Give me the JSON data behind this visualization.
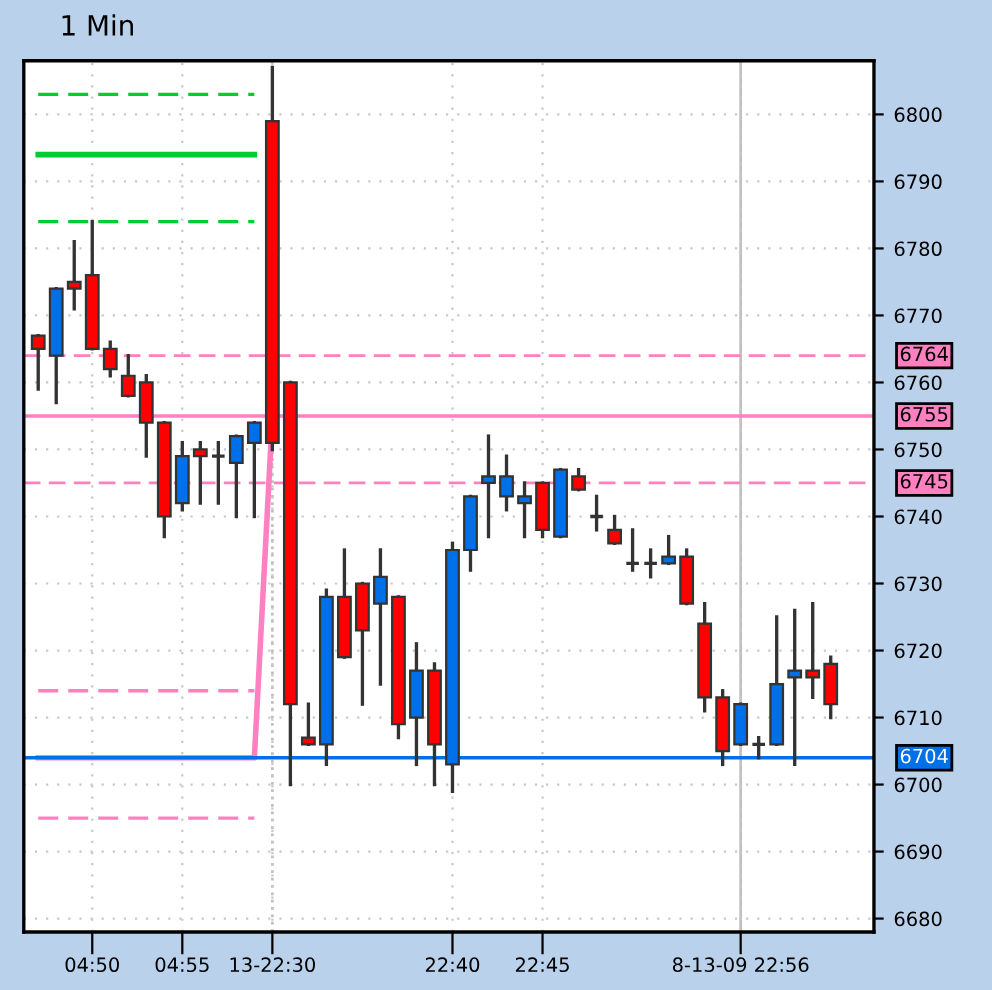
{
  "chart_data": {
    "type": "candlestick",
    "title": "1 Min",
    "categories": [
      null,
      null,
      null,
      "04:50",
      null,
      null,
      null,
      null,
      "04:55",
      null,
      null,
      null,
      null,
      "13-22:30",
      null,
      null,
      null,
      null,
      null,
      null,
      null,
      null,
      null,
      "22:40",
      null,
      null,
      null,
      null,
      "22:45",
      null,
      null,
      null,
      null,
      null,
      null,
      null,
      null,
      null,
      null,
      "8-13-09 22:56",
      null,
      null,
      null,
      null,
      null
    ],
    "ohlc": [
      [
        6767,
        6767,
        6759,
        6765
      ],
      [
        6764,
        6774,
        6757,
        6774
      ],
      [
        6775,
        6781,
        6771,
        6774
      ],
      [
        6776,
        6784,
        6765,
        6765
      ],
      [
        6765,
        6766,
        6761,
        6762
      ],
      [
        6761,
        6764,
        6758,
        6758
      ],
      [
        6760,
        6761,
        6749,
        6754
      ],
      [
        6754,
        6754,
        6737,
        6740
      ],
      [
        6742,
        6751,
        6741,
        6749
      ],
      [
        6750,
        6751,
        6742,
        6749
      ],
      [
        6749,
        6751,
        6742,
        6749
      ],
      [
        6748,
        6752,
        6740,
        6752
      ],
      [
        6751,
        6754,
        6740,
        6754
      ],
      [
        6799,
        6807,
        6750,
        6751
      ],
      [
        6760,
        6760,
        6700,
        6712
      ],
      [
        6707,
        6712,
        6706,
        6706
      ],
      [
        6706,
        6729,
        6703,
        6728
      ],
      [
        6728,
        6735,
        6719,
        6719
      ],
      [
        6730,
        6730,
        6712,
        6723
      ],
      [
        6727,
        6735,
        6715,
        6731
      ],
      [
        6728,
        6728,
        6707,
        6709
      ],
      [
        6710,
        6721,
        6703,
        6717
      ],
      [
        6717,
        6718,
        6700,
        6706
      ],
      [
        6703,
        6736,
        6699,
        6735
      ],
      [
        6735,
        6743,
        6732,
        6743
      ],
      [
        6745,
        6752,
        6737,
        6746
      ],
      [
        6743,
        6749,
        6741,
        6746
      ],
      [
        6742,
        6745,
        6737,
        6743
      ],
      [
        6745,
        6745,
        6737,
        6738
      ],
      [
        6737,
        6747,
        6737,
        6747
      ],
      [
        6746,
        6747,
        6744,
        6744
      ],
      [
        6740,
        6743,
        6738,
        6740
      ],
      [
        6738,
        6740,
        6736,
        6736
      ],
      [
        6733,
        6738,
        6732,
        6733
      ],
      [
        6733,
        6735,
        6731,
        6733
      ],
      [
        6733,
        6737,
        6733,
        6734
      ],
      [
        6734,
        6735,
        6727,
        6727
      ],
      [
        6724,
        6727,
        6711,
        6713
      ],
      [
        6713,
        6714,
        6703,
        6705
      ],
      [
        6706,
        6712,
        6706,
        6712
      ],
      [
        6706,
        6707,
        6704,
        6706
      ],
      [
        6706,
        6725,
        6706,
        6715
      ],
      [
        6716,
        6726,
        6703,
        6717
      ],
      [
        6717,
        6727,
        6713,
        6716
      ],
      [
        6718,
        6719,
        6710,
        6712
      ]
    ],
    "colors": [
      "#ff0000",
      "#0070e8",
      "#ff0000",
      "#ff0000",
      "#ff0000",
      "#ff0000",
      "#ff0000",
      "#ff0000",
      "#0070e8",
      "#ff0000",
      "#333333",
      "#0070e8",
      "#0070e8",
      "#ff0000",
      "#ff0000",
      "#ff0000",
      "#0070e8",
      "#ff0000",
      "#ff0000",
      "#0070e8",
      "#ff0000",
      "#0070e8",
      "#ff0000",
      "#0070e8",
      "#0070e8",
      "#0070e8",
      "#0070e8",
      "#0070e8",
      "#ff0000",
      "#0070e8",
      "#ff0000",
      "#333333",
      "#ff0000",
      "#333333",
      "#333333",
      "#0070e8",
      "#ff0000",
      "#ff0000",
      "#ff0000",
      "#0070e8",
      "#333333",
      "#0070e8",
      "#0070e8",
      "#ff0000",
      "#ff0000"
    ],
    "series": [
      {
        "type": "line",
        "color": "#00cc33",
        "line_style": "solid",
        "values": [
          6794,
          6794,
          6794,
          6794,
          6794,
          6794,
          6794,
          6794,
          6794,
          6794,
          6794,
          6794,
          6794,
          null,
          null,
          null,
          null,
          null,
          null,
          null,
          null,
          null,
          null,
          null,
          null,
          null,
          null,
          null,
          null,
          null,
          null,
          null,
          null,
          null,
          null,
          null,
          null,
          null,
          null,
          null,
          null,
          null,
          null,
          null,
          null
        ]
      },
      {
        "type": "line",
        "color": "#00cc33",
        "line_style": "dashed",
        "values": [
          6803,
          6803,
          6803,
          6803,
          6803,
          6803,
          6803,
          6803,
          6803,
          6803,
          6803,
          6803,
          6803,
          null,
          null,
          null,
          null,
          null,
          null,
          null,
          null,
          null,
          null,
          null,
          null,
          null,
          null,
          null,
          null,
          null,
          null,
          null,
          null,
          null,
          null,
          null,
          null,
          null,
          null,
          null,
          null,
          null,
          null,
          null,
          null
        ]
      },
      {
        "type": "line",
        "color": "#00cc33",
        "line_style": "dashed",
        "values": [
          6784,
          6784,
          6784,
          6784,
          6784,
          6784,
          6784,
          6784,
          6784,
          6784,
          6784,
          6784,
          6784,
          null,
          null,
          null,
          null,
          null,
          null,
          null,
          null,
          null,
          null,
          null,
          null,
          null,
          null,
          null,
          null,
          null,
          null,
          null,
          null,
          null,
          null,
          null,
          null,
          null,
          null,
          null,
          null,
          null,
          null,
          null,
          null
        ]
      },
      {
        "type": "line",
        "color": "#ff80c0",
        "line_style": "solid",
        "values": [
          6704,
          6704,
          6704,
          6704,
          6704,
          6704,
          6704,
          6704,
          6704,
          6704,
          6704,
          6704,
          6704,
          6755,
          null,
          null,
          null,
          null,
          null,
          null,
          null,
          null,
          null,
          null,
          null,
          null,
          null,
          null,
          null,
          null,
          null,
          null,
          null,
          null,
          null,
          null,
          null,
          null,
          null,
          null,
          null,
          null,
          null,
          null,
          null
        ]
      },
      {
        "type": "line",
        "color": "#ff80c0",
        "line_style": "dashed",
        "values": [
          6714,
          6714,
          6714,
          6714,
          6714,
          6714,
          6714,
          6714,
          6714,
          6714,
          6714,
          6714,
          6714,
          null,
          null,
          null,
          null,
          null,
          null,
          null,
          null,
          null,
          null,
          null,
          null,
          null,
          null,
          null,
          null,
          null,
          null,
          null,
          null,
          null,
          null,
          null,
          null,
          null,
          null,
          null,
          null,
          null,
          null,
          null,
          null
        ]
      },
      {
        "type": "line",
        "color": "#ff80c0",
        "line_style": "dashed",
        "values": [
          6695,
          6695,
          6695,
          6695,
          6695,
          6695,
          6695,
          6695,
          6695,
          6695,
          6695,
          6695,
          6695,
          null,
          null,
          null,
          null,
          null,
          null,
          null,
          null,
          null,
          null,
          null,
          null,
          null,
          null,
          null,
          null,
          null,
          null,
          null,
          null,
          null,
          null,
          null,
          null,
          null,
          null,
          null,
          null,
          null,
          null,
          null,
          null
        ]
      }
    ],
    "ref_lines": [
      {
        "axis": "y",
        "value": 6764,
        "label": "6764",
        "color": "#ff80c0",
        "line_style": "dashed"
      },
      {
        "axis": "y",
        "value": 6755,
        "label": "6755",
        "color": "#ff80c0",
        "line_style": "solid"
      },
      {
        "axis": "y",
        "value": 6745,
        "label": "6745",
        "color": "#ff80c0",
        "line_style": "dashed"
      },
      {
        "axis": "y",
        "value": 6704,
        "label": "6704",
        "color": "#0070e8",
        "line_style": "solid"
      },
      {
        "axis": "x",
        "value": "8-13-09 22:56",
        "color": "#c0c0c0",
        "line_style": "solid"
      },
      {
        "axis": "x",
        "value": "13-22:30",
        "color": "#c0c0c0",
        "line_style": "dotted"
      }
    ],
    "ylim": [
      6678,
      6808
    ],
    "yticks": [
      6680,
      6690,
      6700,
      6710,
      6720,
      6730,
      6740,
      6750,
      6760,
      6770,
      6780,
      6790,
      6800
    ],
    "grid": true
  }
}
